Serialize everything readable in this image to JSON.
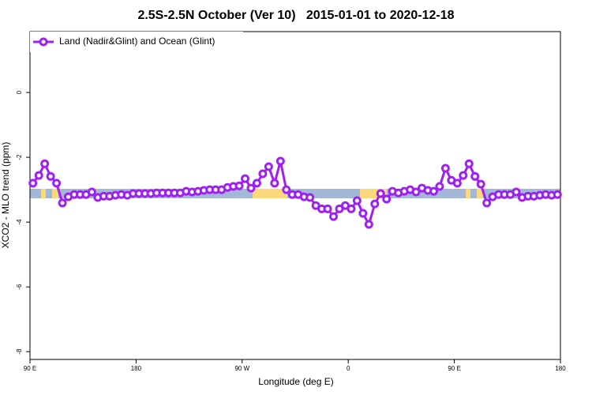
{
  "chart_data": {
    "type": "line",
    "title": "2.5S-2.5N October (Ver 10)   2015-01-01 to 2020-12-18",
    "x_label": "Longitude (deg E)",
    "y_label": "XCO2 - MLO trend (ppm)",
    "xlim": [
      90,
      540
    ],
    "ylim": [
      -8.24,
      1.88
    ],
    "xticks": [
      {
        "value": 90,
        "label": "90 E"
      },
      180,
      {
        "value": 270,
        "label": "90 W"
      },
      {
        "value": 360,
        "label": "0"
      },
      {
        "value": 450,
        "label": "90 E"
      },
      {
        "value": 540,
        "label": "180"
      }
    ],
    "yticks": [
      0,
      -2,
      -4,
      -6,
      -8
    ],
    "legend_position": "top-left",
    "x": [
      92.5,
      97.5,
      102.5,
      107.5,
      112.5,
      117.5,
      122.5,
      127.5,
      132.5,
      137.5,
      142.5,
      147.5,
      152.5,
      157.5,
      162.5,
      167.5,
      172.5,
      177.5,
      182.5,
      187.5,
      192.5,
      197.5,
      202.5,
      207.5,
      212.5,
      217.5,
      222.5,
      227.5,
      232.5,
      237.5,
      242.5,
      247.5,
      252.5,
      257.5,
      262.5,
      267.5,
      272.5,
      277.5,
      282.5,
      287.5,
      292.5,
      297.5,
      302.5,
      307.5,
      312.5,
      317.5,
      322.5,
      327.5,
      332.5,
      337.5,
      342.5,
      347.5,
      352.5,
      357.5,
      362.5,
      367.5,
      372.5,
      377.5,
      382.5,
      387.5,
      392.5,
      397.5,
      402.5,
      407.5,
      412.5,
      417.5,
      422.5,
      427.5,
      432.5,
      437.5,
      442.5,
      447.5,
      452.5,
      457.5,
      462.5,
      467.5,
      472.5,
      477.5,
      482.5,
      487.5,
      492.5,
      497.5,
      502.5,
      507.5,
      512.5,
      517.5,
      522.5,
      527.5,
      532.5,
      537.5
    ],
    "series": [
      {
        "name": "Land (Nadir&Glint) and Ocean (Glint)",
        "color": "#a020f0",
        "values": [
          -2.8,
          -2.56,
          -2.2,
          -2.59,
          -2.8,
          -3.41,
          -3.22,
          -3.15,
          -3.15,
          -3.15,
          -3.07,
          -3.24,
          -3.2,
          -3.2,
          -3.17,
          -3.15,
          -3.17,
          -3.12,
          -3.12,
          -3.12,
          -3.12,
          -3.1,
          -3.1,
          -3.1,
          -3.1,
          -3.1,
          -3.05,
          -3.07,
          -3.05,
          -3.02,
          -3.0,
          -3.0,
          -3.0,
          -2.93,
          -2.9,
          -2.88,
          -2.66,
          -2.95,
          -2.8,
          -2.51,
          -2.29,
          -2.8,
          -2.12,
          -3.0,
          -3.15,
          -3.15,
          -3.22,
          -3.24,
          -3.49,
          -3.59,
          -3.59,
          -3.83,
          -3.59,
          -3.49,
          -3.59,
          -3.34,
          -3.73,
          -4.07,
          -3.44,
          -3.12,
          -3.29,
          -3.05,
          -3.1,
          -3.05,
          -3.0,
          -3.07,
          -2.95,
          -3.02,
          -3.05,
          -2.9,
          -2.34,
          -2.71,
          -2.8,
          -2.56,
          -2.2,
          -2.59,
          -2.83,
          -3.41,
          -3.22,
          -3.15,
          -3.15,
          -3.15,
          -3.07,
          -3.24,
          -3.2,
          -3.2,
          -3.17,
          -3.15,
          -3.17,
          -3.15
        ]
      }
    ]
  }
}
